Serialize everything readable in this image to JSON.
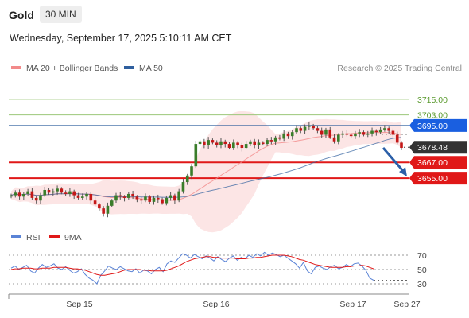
{
  "header": {
    "title": "Gold",
    "interval": "30 MIN"
  },
  "datetime": "Wednesday, September 17, 2025 5:10:11 AM CET",
  "legend_main": [
    {
      "label": "MA 20 + Bollinger Bands",
      "color": "#f28a8a"
    },
    {
      "label": "MA 50",
      "color": "#2f5f9e"
    }
  ],
  "legend_rsi": [
    {
      "label": "RSI",
      "color": "#5a83d6"
    },
    {
      "label": "9MA",
      "color": "#e01818"
    }
  ],
  "credit": "Research © 2025 Trading Central",
  "chart_data": [
    {
      "type": "candlestick",
      "title": "",
      "x_ticks": [
        "Sep 15",
        "Sep 16",
        "Sep 17",
        "Sep 27"
      ],
      "levels": [
        {
          "label": "3715.00",
          "value": 3715.0,
          "kind": "target"
        },
        {
          "label": "3703.00",
          "value": 3703.0,
          "kind": "target"
        },
        {
          "label": "3695.00",
          "value": 3695.0,
          "kind": "ma50"
        },
        {
          "label": "3678.48",
          "value": 3678.48,
          "kind": "last"
        },
        {
          "label": "3667.00",
          "value": 3667.0,
          "kind": "support"
        },
        {
          "label": "3655.00",
          "value": 3655.0,
          "kind": "support"
        }
      ],
      "ylim": [
        3620,
        3730
      ],
      "close_series": [
        3642,
        3644,
        3641,
        3643,
        3645,
        3640,
        3638,
        3642,
        3646,
        3644,
        3645,
        3647,
        3644,
        3643,
        3645,
        3642,
        3640,
        3641,
        3643,
        3638,
        3635,
        3632,
        3628,
        3634,
        3638,
        3642,
        3641,
        3640,
        3643,
        3641,
        3639,
        3638,
        3641,
        3637,
        3640,
        3639,
        3636,
        3640,
        3642,
        3638,
        3645,
        3652,
        3657,
        3664,
        3681,
        3683,
        3680,
        3684,
        3682,
        3680,
        3683,
        3681,
        3678,
        3682,
        3680,
        3678,
        3681,
        3683,
        3680,
        3682,
        3681,
        3684,
        3683,
        3686,
        3685,
        3689,
        3687,
        3690,
        3693,
        3691,
        3694,
        3695,
        3693,
        3691,
        3688,
        3692,
        3686,
        3683,
        3688,
        3689,
        3688,
        3687,
        3689,
        3690,
        3688,
        3689,
        3691,
        3690,
        3692,
        3693,
        3691,
        3688,
        3682,
        3678
      ],
      "direction": "down"
    },
    {
      "type": "line",
      "title": "",
      "y_ticks": [
        70,
        50,
        30
      ],
      "ylim": [
        20,
        80
      ],
      "series": [
        {
          "name": "RSI",
          "values": [
            52,
            55,
            50,
            53,
            56,
            48,
            45,
            52,
            57,
            53,
            55,
            58,
            52,
            50,
            54,
            49,
            45,
            47,
            51,
            43,
            38,
            35,
            30,
            42,
            48,
            55,
            52,
            50,
            54,
            51,
            48,
            47,
            51,
            45,
            49,
            48,
            44,
            50,
            53,
            47,
            58,
            62,
            60,
            66,
            72,
            70,
            66,
            71,
            68,
            65,
            69,
            66,
            62,
            68,
            64,
            61,
            66,
            69,
            63,
            67,
            65,
            70,
            67,
            72,
            69,
            74,
            70,
            73,
            71,
            68,
            70,
            66,
            62,
            58,
            52,
            60,
            48,
            44,
            53,
            55,
            52,
            50,
            54,
            56,
            51,
            53,
            57,
            54,
            58,
            59,
            55,
            49,
            38,
            35
          ]
        },
        {
          "name": "9MA",
          "values": [
            50,
            51,
            51,
            52,
            52,
            52,
            51,
            51,
            52,
            52,
            52,
            53,
            53,
            53,
            53,
            52,
            51,
            51,
            50,
            49,
            47,
            45,
            43,
            42,
            42,
            43,
            44,
            45,
            47,
            49,
            50,
            50,
            50,
            50,
            49,
            49,
            48,
            48,
            48,
            48,
            49,
            51,
            53,
            55,
            58,
            61,
            63,
            65,
            66,
            67,
            68,
            68,
            67,
            67,
            66,
            66,
            66,
            66,
            65,
            65,
            65,
            66,
            66,
            67,
            67,
            68,
            69,
            70,
            70,
            70,
            70,
            69,
            68,
            66,
            64,
            63,
            61,
            59,
            57,
            56,
            55,
            54,
            53,
            53,
            53,
            53,
            54,
            54,
            55,
            55,
            56,
            55,
            53,
            51
          ]
        }
      ]
    }
  ]
}
